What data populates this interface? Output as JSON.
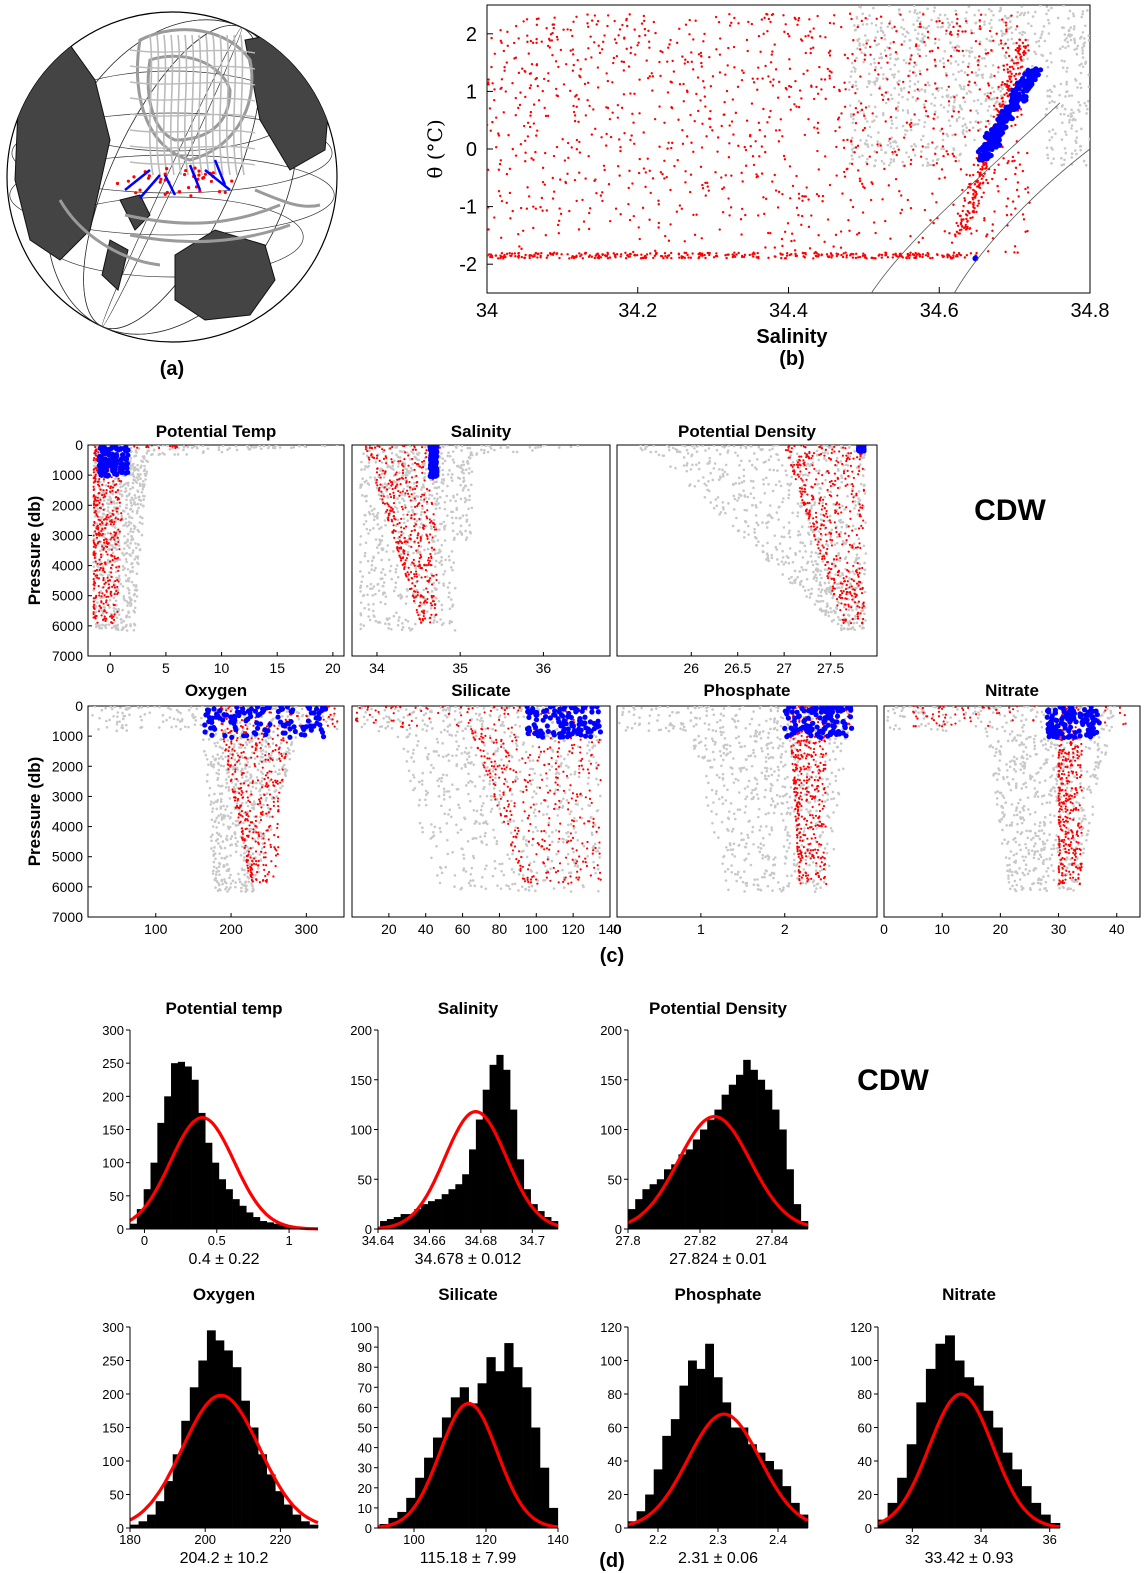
{
  "colors": {
    "background": "#c8c8c8",
    "highlight": "#ff0000",
    "selected": "#0000ff",
    "fit": "#ff0000",
    "bars": "#000000"
  },
  "panel_labels": {
    "a": "(a)",
    "b": "(b)",
    "c": "(c)",
    "d": "(d)"
  },
  "water_mass_label": "CDW",
  "map": {
    "type": "orthographic-globe"
  },
  "chart_data": [
    {
      "id": "b",
      "type": "scatter",
      "xlabel": "Salinity",
      "ylabel": "θ (°C)",
      "xlim": [
        34.0,
        34.8
      ],
      "ylim": [
        -2.5,
        2.5
      ],
      "xticks": [
        "34",
        "34.2",
        "34.4",
        "34.6",
        "34.8"
      ],
      "yticks": [
        "-2",
        "-1",
        "0",
        "1",
        "2"
      ],
      "series": [
        {
          "color": "#c8c8c8",
          "description_points": [
            [
              34.55,
              2.4
            ],
            [
              34.72,
              1.6
            ],
            [
              34.76,
              0.6
            ],
            [
              34.7,
              -0.6
            ],
            [
              34.65,
              -1.9
            ]
          ]
        },
        {
          "color": "#ff0000",
          "description_points": [
            [
              34.0,
              -1.85
            ],
            [
              34.3,
              -1.9
            ],
            [
              34.6,
              -1.9
            ],
            [
              34.68,
              0.3
            ],
            [
              34.7,
              2.4
            ]
          ]
        },
        {
          "color": "#0000ff",
          "description_points": [
            [
              34.66,
              0.0
            ],
            [
              34.7,
              0.6
            ],
            [
              34.73,
              1.4
            ],
            [
              34.65,
              -1.9
            ]
          ]
        }
      ]
    },
    {
      "id": "c",
      "type": "scatter",
      "ylabel": "Pressure (db)",
      "ylim": [
        7000,
        0
      ],
      "yticks": [
        "0",
        "1000",
        "2000",
        "3000",
        "4000",
        "5000",
        "6000",
        "7000"
      ],
      "panels": [
        {
          "title": "Potential Temp",
          "xlim": [
            -2,
            21
          ],
          "xticks": [
            {
              "v": 0,
              "t": "0"
            },
            {
              "v": 5,
              "t": "5"
            },
            {
              "v": 10,
              "t": "10"
            },
            {
              "v": 15,
              "t": "15"
            },
            {
              "v": 20,
              "t": "20"
            }
          ],
          "shape": "temp"
        },
        {
          "title": "Salinity",
          "xlim": [
            33.7,
            36.8
          ],
          "xticks": [
            {
              "v": 34,
              "t": "34"
            },
            {
              "v": 35,
              "t": "35"
            },
            {
              "v": 36,
              "t": "36"
            }
          ],
          "shape": "sal"
        },
        {
          "title": "Potential Density",
          "xlim": [
            25.2,
            28.0
          ],
          "xticks": [
            {
              "v": 26,
              "t": "26"
            },
            {
              "v": 26.5,
              "t": "26.5"
            },
            {
              "v": 27,
              "t": "27"
            },
            {
              "v": 27.5,
              "t": "27.5"
            }
          ],
          "shape": "dens"
        },
        {
          "title": "Oxygen",
          "xlim": [
            10,
            350
          ],
          "xticks": [
            {
              "v": 100,
              "t": "100"
            },
            {
              "v": 200,
              "t": "200"
            },
            {
              "v": 300,
              "t": "300"
            }
          ],
          "shape": "oxy"
        },
        {
          "title": "Silicate",
          "xlim": [
            0,
            140
          ],
          "xticks": [
            {
              "v": 20,
              "t": "20"
            },
            {
              "v": 40,
              "t": "40"
            },
            {
              "v": 60,
              "t": "60"
            },
            {
              "v": 80,
              "t": "80"
            },
            {
              "v": 100,
              "t": "100"
            },
            {
              "v": 120,
              "t": "120"
            },
            {
              "v": 140,
              "t": "140"
            }
          ],
          "shape": "sil"
        },
        {
          "title": "Phosphate",
          "xlim": [
            0,
            3.1
          ],
          "xticks": [
            {
              "v": 0,
              "t": "0"
            },
            {
              "v": 1,
              "t": "1"
            },
            {
              "v": 2,
              "t": "2"
            }
          ],
          "shape": "phos"
        },
        {
          "title": "Nitrate",
          "xlim": [
            0,
            44
          ],
          "xticks": [
            {
              "v": 0,
              "t": "0"
            },
            {
              "v": 10,
              "t": "10"
            },
            {
              "v": 20,
              "t": "20"
            },
            {
              "v": 30,
              "t": "30"
            },
            {
              "v": 40,
              "t": "40"
            }
          ],
          "shape": "nit"
        }
      ]
    },
    {
      "id": "d",
      "type": "bar",
      "panels": [
        {
          "title": "Potential temp",
          "stat": "0.4 ± 0.22",
          "mean": 0.4,
          "std": 0.22,
          "xlim": [
            -0.1,
            1.2
          ],
          "ylim": [
            0,
            300
          ],
          "yticks": [
            0,
            50,
            100,
            150,
            200,
            250,
            300
          ],
          "xticks": [
            {
              "v": 0,
              "t": "0"
            },
            {
              "v": 0.5,
              "t": "0.5"
            },
            {
              "v": 1,
              "t": "1"
            }
          ],
          "curve_peak": 168,
          "values": [
            8,
            30,
            60,
            100,
            160,
            200,
            250,
            252,
            245,
            225,
            175,
            130,
            100,
            75,
            60,
            45,
            35,
            25,
            18,
            12,
            10,
            8,
            6,
            5,
            3
          ]
        },
        {
          "title": "Salinity",
          "stat": "34.678 ± 0.012",
          "mean": 34.678,
          "std": 0.012,
          "xlim": [
            34.64,
            34.71
          ],
          "ylim": [
            0,
            200
          ],
          "yticks": [
            0,
            50,
            100,
            150,
            200
          ],
          "xticks": [
            {
              "v": 34.64,
              "t": "34.64"
            },
            {
              "v": 34.66,
              "t": "34.66"
            },
            {
              "v": 34.68,
              "t": "34.68"
            },
            {
              "v": 34.7,
              "t": "34.7"
            }
          ],
          "curve_peak": 118,
          "values": [
            8,
            10,
            12,
            15,
            15,
            20,
            25,
            28,
            30,
            35,
            40,
            45,
            55,
            80,
            110,
            140,
            165,
            175,
            160,
            120,
            70,
            40,
            25,
            18,
            12,
            8
          ]
        },
        {
          "title": "Potential Density",
          "stat": "27.824 ± 0.01",
          "mean": 27.824,
          "std": 0.01,
          "xlim": [
            27.8,
            27.85
          ],
          "ylim": [
            0,
            200
          ],
          "yticks": [
            0,
            50,
            100,
            150,
            200
          ],
          "xticks": [
            {
              "v": 27.8,
              "t": "27.8"
            },
            {
              "v": 27.82,
              "t": "27.82"
            },
            {
              "v": 27.84,
              "t": "27.84"
            }
          ],
          "curve_peak": 113,
          "values": [
            20,
            30,
            40,
            45,
            50,
            60,
            65,
            75,
            80,
            90,
            100,
            110,
            120,
            135,
            145,
            155,
            170,
            160,
            150,
            140,
            120,
            100,
            60,
            25,
            8
          ]
        },
        {
          "title": "Oxygen",
          "stat": "204.2 ± 10.2",
          "mean": 204.2,
          "std": 10.2,
          "xlim": [
            180,
            230
          ],
          "ylim": [
            0,
            300
          ],
          "yticks": [
            0,
            50,
            100,
            150,
            200,
            250,
            300
          ],
          "xticks": [
            {
              "v": 180,
              "t": "180"
            },
            {
              "v": 200,
              "t": "200"
            },
            {
              "v": 220,
              "t": "220"
            }
          ],
          "curve_peak": 198,
          "values": [
            5,
            10,
            20,
            40,
            70,
            110,
            160,
            210,
            250,
            295,
            280,
            265,
            240,
            190,
            150,
            110,
            80,
            55,
            35,
            20,
            10,
            5
          ]
        },
        {
          "title": "Silicate",
          "stat": "115.18 ± 7.99",
          "mean": 115.18,
          "std": 7.99,
          "xlim": [
            90,
            140
          ],
          "ylim": [
            0,
            100
          ],
          "yticks": [
            0,
            10,
            20,
            30,
            40,
            50,
            60,
            70,
            80,
            90,
            100
          ],
          "xticks": [
            {
              "v": 100,
              "t": "100"
            },
            {
              "v": 120,
              "t": "120"
            },
            {
              "v": 140,
              "t": "140"
            }
          ],
          "curve_peak": 62,
          "values": [
            2,
            5,
            8,
            15,
            25,
            35,
            45,
            55,
            65,
            70,
            62,
            72,
            85,
            78,
            92,
            80,
            70,
            50,
            30,
            10
          ]
        },
        {
          "title": "Phosphate",
          "stat": "2.31 ± 0.06",
          "mean": 2.31,
          "std": 0.06,
          "xlim": [
            2.15,
            2.45
          ],
          "ylim": [
            0,
            120
          ],
          "yticks": [
            0,
            20,
            40,
            60,
            80,
            100,
            120
          ],
          "xticks": [
            {
              "v": 2.2,
              "t": "2.2"
            },
            {
              "v": 2.3,
              "t": "2.3"
            },
            {
              "v": 2.4,
              "t": "2.4"
            }
          ],
          "curve_peak": 68,
          "values": [
            4,
            10,
            20,
            35,
            55,
            65,
            85,
            100,
            95,
            110,
            90,
            75,
            60,
            60,
            50,
            45,
            40,
            35,
            25,
            15,
            8
          ]
        },
        {
          "title": "Nitrate",
          "stat": "33.42 ± 0.93",
          "mean": 33.42,
          "std": 0.93,
          "xlim": [
            31,
            36.3
          ],
          "ylim": [
            0,
            120
          ],
          "yticks": [
            0,
            20,
            40,
            60,
            80,
            100,
            120
          ],
          "xticks": [
            {
              "v": 32,
              "t": "32"
            },
            {
              "v": 34,
              "t": "34"
            },
            {
              "v": 36,
              "t": "36"
            }
          ],
          "curve_peak": 80,
          "values": [
            5,
            15,
            30,
            50,
            75,
            95,
            110,
            115,
            100,
            90,
            85,
            70,
            60,
            45,
            35,
            25,
            15,
            8,
            3
          ]
        }
      ]
    }
  ]
}
